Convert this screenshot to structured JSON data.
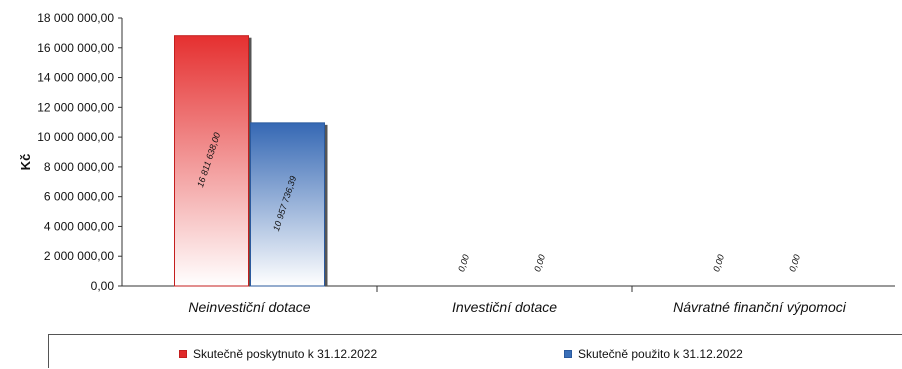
{
  "chart_data": {
    "type": "bar",
    "ylabel": "Kč",
    "ylim": [
      0,
      18000000
    ],
    "yticks": [
      "0,00",
      "2 000 000,00",
      "4 000 000,00",
      "6 000 000,00",
      "8 000 000,00",
      "10 000 000,00",
      "12 000 000,00",
      "14 000 000,00",
      "16 000 000,00",
      "18 000 000,00"
    ],
    "categories": [
      "Neinvestiční dotace",
      "Investiční dotace",
      "Návratné finanční výpomoci"
    ],
    "series": [
      {
        "name": "Skutečně poskytnuto k  31.12.2022",
        "values": [
          16811638.0,
          0,
          0
        ],
        "labels": [
          "16 811 638,00",
          "0,00",
          "0,00"
        ],
        "color": "#e02a2a"
      },
      {
        "name": "Skutečně použito k  31.12.2022",
        "values": [
          10957736.39,
          0,
          0
        ],
        "labels": [
          "10 957 736,39",
          "0,00",
          "0,00"
        ],
        "color": "#3a6fb8"
      }
    ],
    "legend_position": "bottom"
  }
}
